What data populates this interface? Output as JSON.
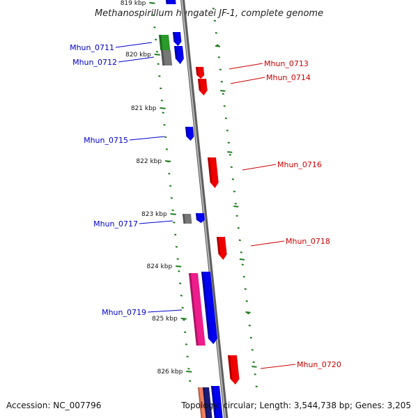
{
  "title": "Methanospirillum hungatei JF-1, complete genome",
  "footer": {
    "accession": "Accession: NC_007796",
    "summary": "Topology: circular; Length: 3,544,738 bp; Genes: 3,205"
  },
  "colors": {
    "backbone": "#8c8c8c",
    "tick": "#1e7a1e",
    "label_plus": "#0000cc",
    "label_minus": "#cc0000",
    "gene_blue": "#0000ee",
    "gene_red": "#ee0000",
    "gene_green": "#2a9a2a",
    "gene_grey": "#777777",
    "gene_pink": "#ee1d8c"
  },
  "scale_labels": [
    "819 kbp",
    "820 kbp",
    "821 kbp",
    "822 kbp",
    "823 kbp",
    "824 kbp",
    "825 kbp",
    "826 kbp"
  ],
  "genes": [
    {
      "id": "Mhun_0711",
      "strand": "plus",
      "color": "gene_green"
    },
    {
      "id": "Mhun_0712",
      "strand": "plus",
      "color": "gene_blue"
    },
    {
      "id": "Mhun_0713",
      "strand": "minus",
      "color": "gene_red"
    },
    {
      "id": "Mhun_0714",
      "strand": "minus",
      "color": "gene_red"
    },
    {
      "id": "Mhun_0715",
      "strand": "plus",
      "color": "gene_blue"
    },
    {
      "id": "Mhun_0716",
      "strand": "minus",
      "color": "gene_red"
    },
    {
      "id": "Mhun_0717",
      "strand": "plus",
      "color": "gene_blue"
    },
    {
      "id": "Mhun_0718",
      "strand": "minus",
      "color": "gene_red"
    },
    {
      "id": "Mhun_0719",
      "strand": "plus",
      "color": "gene_pink"
    },
    {
      "id": "Mhun_0720",
      "strand": "minus",
      "color": "gene_red"
    }
  ]
}
